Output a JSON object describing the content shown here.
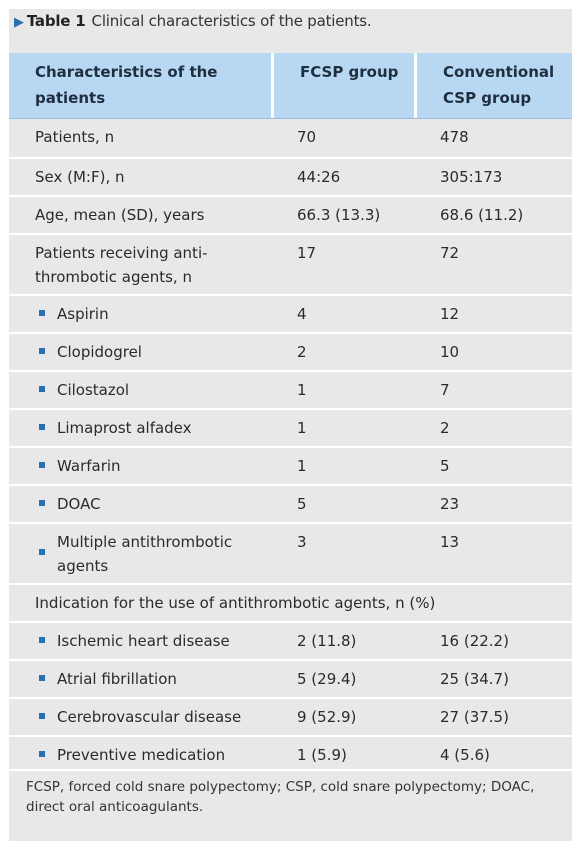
{
  "caption": {
    "label": "Table 1",
    "text": "Clinical characteristics of the patients."
  },
  "columns": [
    "Characteristics of the patients",
    "FCSP group",
    "Conventional CSP group"
  ],
  "rows": [
    {
      "label": "Patients, n",
      "fcsp": "70",
      "csp": "478"
    },
    {
      "label": "Sex (M:F), n",
      "fcsp": "44:26",
      "csp": "305:173"
    },
    {
      "label": "Age, mean (SD), years",
      "fcsp": "66.3 (13.3)",
      "csp": "68.6 (11.2)"
    },
    {
      "label": "Patients receiving anti-thrombotic agents, n",
      "fcsp": "17",
      "csp": "72"
    },
    {
      "label": "Aspirin",
      "fcsp": "4",
      "csp": "12"
    },
    {
      "label": "Clopidogrel",
      "fcsp": "2",
      "csp": "10"
    },
    {
      "label": "Cilostazol",
      "fcsp": "1",
      "csp": "7"
    },
    {
      "label": "Limaprost alfadex",
      "fcsp": "1",
      "csp": "2"
    },
    {
      "label": "Warfarin",
      "fcsp": "1",
      "csp": "5"
    },
    {
      "label": "DOAC",
      "fcsp": "5",
      "csp": "23"
    },
    {
      "label": "Multiple antithrombotic agents",
      "fcsp": "3",
      "csp": "13"
    },
    {
      "label": "Indication for the use of antithrombotic agents, n (%)"
    },
    {
      "label": "Ischemic heart disease",
      "fcsp": "2 (11.8)",
      "csp": "16 (22.2)"
    },
    {
      "label": "Atrial fibrillation",
      "fcsp": "5 (29.4)",
      "csp": "25 (34.7)"
    },
    {
      "label": "Cerebrovascular disease",
      "fcsp": "9 (52.9)",
      "csp": "27 (37.5)"
    },
    {
      "label": "Preventive medication",
      "fcsp": "1 (5.9)",
      "csp": "4 (5.6)"
    }
  ],
  "footnote": "FCSP, forced cold snare polypectomy; CSP, cold snare polypectomy; DOAC, direct oral anticoagulants.",
  "colors": {
    "header_bg": "#b7d7f2",
    "panel_bg": "#e8e8e8",
    "accent": "#2a6fb0"
  }
}
